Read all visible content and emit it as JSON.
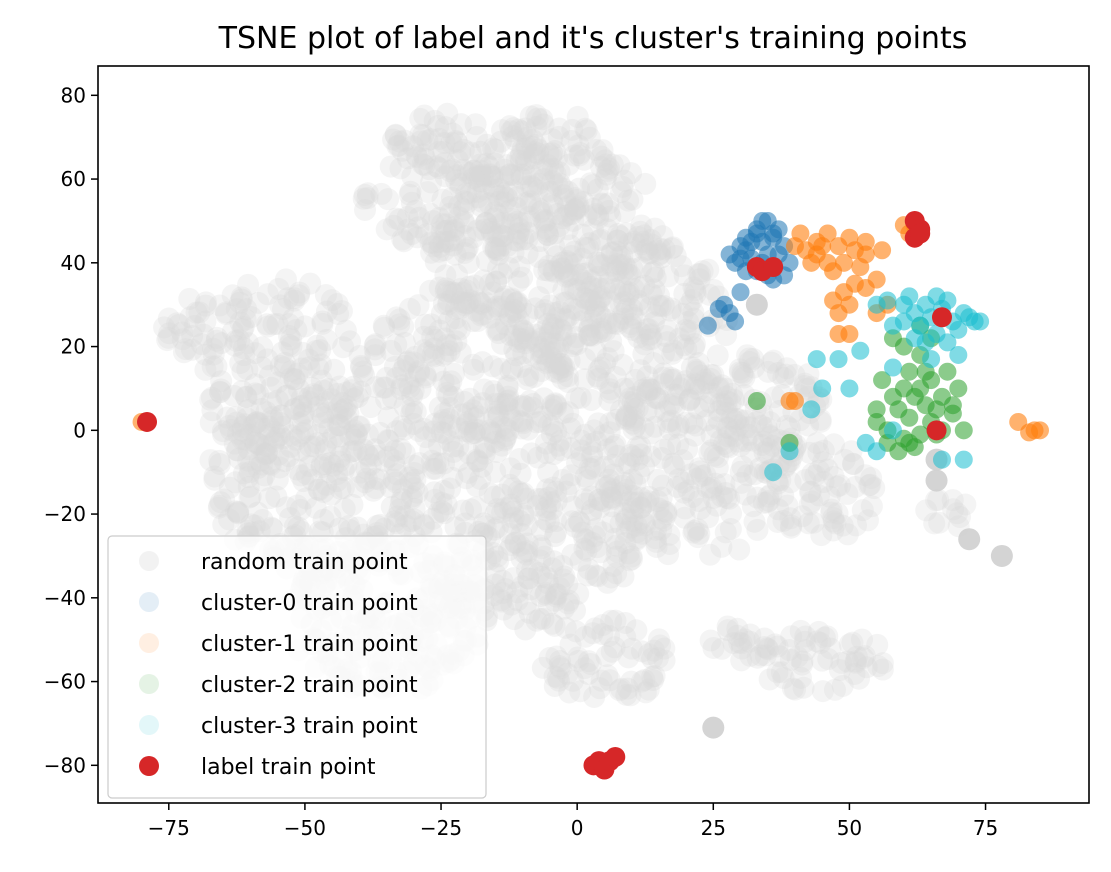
{
  "chart_data": {
    "type": "scatter",
    "title": "TSNE plot of label and it's cluster's training points",
    "xlim": [
      -88,
      94
    ],
    "ylim": [
      -89,
      87
    ],
    "xticks": [
      -75,
      -50,
      -25,
      0,
      25,
      50,
      75
    ],
    "yticks": [
      -80,
      -60,
      -40,
      -20,
      0,
      20,
      40,
      60,
      80
    ],
    "xtick_labels": [
      "−75",
      "−50",
      "−25",
      "0",
      "25",
      "50",
      "75"
    ],
    "ytick_labels": [
      "−80",
      "−60",
      "−40",
      "−20",
      "0",
      "20",
      "40",
      "60",
      "80"
    ],
    "grid": false,
    "legend_position": "lower-left",
    "random_regions": [
      {
        "cx": -55,
        "cy": 15,
        "rx": 16,
        "ry": 22
      },
      {
        "cx": -48,
        "cy": -12,
        "rx": 20,
        "ry": 22
      },
      {
        "cx": -35,
        "cy": -45,
        "rx": 18,
        "ry": 18
      },
      {
        "cx": -20,
        "cy": 55,
        "rx": 20,
        "ry": 14
      },
      {
        "cx": -5,
        "cy": 45,
        "rx": 22,
        "ry": 25
      },
      {
        "cx": -20,
        "cy": 15,
        "rx": 18,
        "ry": 20
      },
      {
        "cx": -10,
        "cy": -20,
        "rx": 22,
        "ry": 28
      },
      {
        "cx": 10,
        "cy": 25,
        "rx": 18,
        "ry": 22
      },
      {
        "cx": 20,
        "cy": -10,
        "rx": 18,
        "ry": 22
      },
      {
        "cx": 5,
        "cy": -55,
        "rx": 12,
        "ry": 10
      },
      {
        "cx": 35,
        "cy": 5,
        "rx": 10,
        "ry": 15
      },
      {
        "cx": 45,
        "cy": -15,
        "rx": 10,
        "ry": 12
      },
      {
        "cx": 45,
        "cy": -55,
        "rx": 12,
        "ry": 8
      },
      {
        "cx": 30,
        "cy": -50,
        "rx": 6,
        "ry": 6
      },
      {
        "cx": 68,
        "cy": -20,
        "rx": 4,
        "ry": 5
      },
      {
        "cx": -70,
        "cy": 25,
        "rx": 6,
        "ry": 8
      },
      {
        "cx": -25,
        "cy": 70,
        "rx": 10,
        "ry": 6
      },
      {
        "cx": -5,
        "cy": 70,
        "rx": 10,
        "ry": 6
      }
    ],
    "random_extra": [
      [
        78,
        -30
      ],
      [
        25,
        -71
      ],
      [
        72,
        -26
      ],
      [
        66,
        -7
      ],
      [
        66,
        -12
      ],
      [
        33,
        30
      ]
    ],
    "series": [
      {
        "name": "random train point",
        "color": "#d9d9d9",
        "opacity": 0.28,
        "marker_size": 11
      },
      {
        "name": "cluster-0 train point",
        "color": "#1f77b4",
        "opacity": 0.55,
        "marker_size": 9,
        "points": [
          [
            34,
            40
          ],
          [
            33,
            38
          ],
          [
            35,
            42
          ],
          [
            32,
            41
          ],
          [
            36,
            39
          ],
          [
            31,
            43
          ],
          [
            34,
            45
          ],
          [
            33,
            48
          ],
          [
            35,
            50
          ],
          [
            36,
            47
          ],
          [
            32,
            45
          ],
          [
            30,
            41
          ],
          [
            31,
            38
          ],
          [
            29,
            40
          ],
          [
            28,
            42
          ],
          [
            37,
            42
          ],
          [
            38,
            44
          ],
          [
            36,
            36
          ],
          [
            35,
            37
          ],
          [
            30,
            33
          ],
          [
            27,
            30
          ],
          [
            26,
            29
          ],
          [
            28,
            28
          ],
          [
            24,
            25
          ],
          [
            29,
            26
          ],
          [
            36,
            46
          ],
          [
            34,
            50
          ],
          [
            33,
            47
          ],
          [
            37,
            48
          ],
          [
            31,
            46
          ],
          [
            30,
            44
          ],
          [
            39,
            40
          ],
          [
            38,
            37
          ]
        ]
      },
      {
        "name": "cluster-1 train point",
        "color": "#ff7f0e",
        "opacity": 0.6,
        "marker_size": 9,
        "points": [
          [
            -79,
            2
          ],
          [
            -80,
            2
          ],
          [
            84,
            0
          ],
          [
            85,
            0
          ],
          [
            83,
            -0.5
          ],
          [
            81,
            2
          ],
          [
            39,
            7
          ],
          [
            40,
            7
          ],
          [
            42,
            43
          ],
          [
            44,
            45
          ],
          [
            46,
            47
          ],
          [
            48,
            44
          ],
          [
            50,
            46
          ],
          [
            51,
            43
          ],
          [
            49,
            40
          ],
          [
            47,
            38
          ],
          [
            52,
            39
          ],
          [
            53,
            42
          ],
          [
            51,
            35
          ],
          [
            49,
            33
          ],
          [
            47,
            31
          ],
          [
            50,
            30
          ],
          [
            48,
            28
          ],
          [
            53,
            34
          ],
          [
            55,
            36
          ],
          [
            43,
            40
          ],
          [
            40,
            44
          ],
          [
            45,
            44
          ],
          [
            46,
            40
          ],
          [
            62,
            49
          ],
          [
            61,
            47
          ],
          [
            60,
            49
          ],
          [
            57,
            30
          ],
          [
            55,
            28
          ],
          [
            48,
            23
          ],
          [
            50,
            23
          ],
          [
            41,
            47
          ],
          [
            44,
            42
          ],
          [
            53,
            45
          ],
          [
            56,
            43
          ]
        ]
      },
      {
        "name": "cluster-2 train point",
        "color": "#2ca02c",
        "opacity": 0.55,
        "marker_size": 9,
        "points": [
          [
            60,
            10
          ],
          [
            62,
            8
          ],
          [
            64,
            6
          ],
          [
            66,
            5
          ],
          [
            61,
            3
          ],
          [
            59,
            5
          ],
          [
            63,
            10
          ],
          [
            65,
            12
          ],
          [
            67,
            8
          ],
          [
            69,
            6
          ],
          [
            61,
            14
          ],
          [
            63,
            18
          ],
          [
            60,
            20
          ],
          [
            58,
            22
          ],
          [
            57,
            0
          ],
          [
            55,
            2
          ],
          [
            57,
            -3
          ],
          [
            59,
            -5
          ],
          [
            61,
            -3
          ],
          [
            63,
            -1
          ],
          [
            65,
            2
          ],
          [
            67,
            0
          ],
          [
            69,
            4
          ],
          [
            71,
            0
          ],
          [
            62,
            -4
          ],
          [
            60,
            -2
          ],
          [
            58,
            8
          ],
          [
            56,
            12
          ],
          [
            55,
            5
          ],
          [
            66,
            -1
          ],
          [
            70,
            10
          ],
          [
            68,
            14
          ],
          [
            64,
            14
          ],
          [
            33,
            7
          ],
          [
            39,
            -3
          ],
          [
            63,
            25
          ],
          [
            65,
            22
          ]
        ]
      },
      {
        "name": "cluster-3 train point",
        "color": "#17becf",
        "opacity": 0.55,
        "marker_size": 9,
        "points": [
          [
            63,
            25
          ],
          [
            65,
            27
          ],
          [
            67,
            29
          ],
          [
            69,
            26
          ],
          [
            71,
            28
          ],
          [
            73,
            26
          ],
          [
            64,
            30
          ],
          [
            62,
            28
          ],
          [
            60,
            26
          ],
          [
            58,
            25
          ],
          [
            66,
            23
          ],
          [
            68,
            21
          ],
          [
            70,
            24
          ],
          [
            64,
            21
          ],
          [
            62,
            22
          ],
          [
            57,
            31
          ],
          [
            55,
            30
          ],
          [
            66,
            32
          ],
          [
            68,
            31
          ],
          [
            70,
            18
          ],
          [
            72,
            27
          ],
          [
            60,
            30
          ],
          [
            61,
            32
          ],
          [
            74,
            26
          ],
          [
            65,
            17
          ],
          [
            67,
            -7
          ],
          [
            71,
            -7
          ],
          [
            50,
            10
          ],
          [
            45,
            10
          ],
          [
            36,
            -10
          ],
          [
            39,
            -5
          ],
          [
            43,
            5
          ],
          [
            44,
            17
          ],
          [
            48,
            17
          ],
          [
            52,
            19
          ],
          [
            58,
            15
          ],
          [
            58,
            0
          ],
          [
            55,
            -5
          ],
          [
            53,
            -3
          ]
        ]
      },
      {
        "name": "label train point",
        "color": "#d62728",
        "opacity": 1,
        "marker_size": 10,
        "points": [
          [
            -79,
            2
          ],
          [
            33,
            39
          ],
          [
            34,
            38
          ],
          [
            36,
            39
          ],
          [
            62,
            50
          ],
          [
            63,
            48
          ],
          [
            62,
            46
          ],
          [
            63,
            47
          ],
          [
            67,
            27
          ],
          [
            66,
            0
          ],
          [
            3,
            -80
          ],
          [
            4,
            -79
          ],
          [
            5,
            -81
          ],
          [
            6,
            -79
          ],
          [
            7,
            -78
          ]
        ]
      }
    ]
  }
}
